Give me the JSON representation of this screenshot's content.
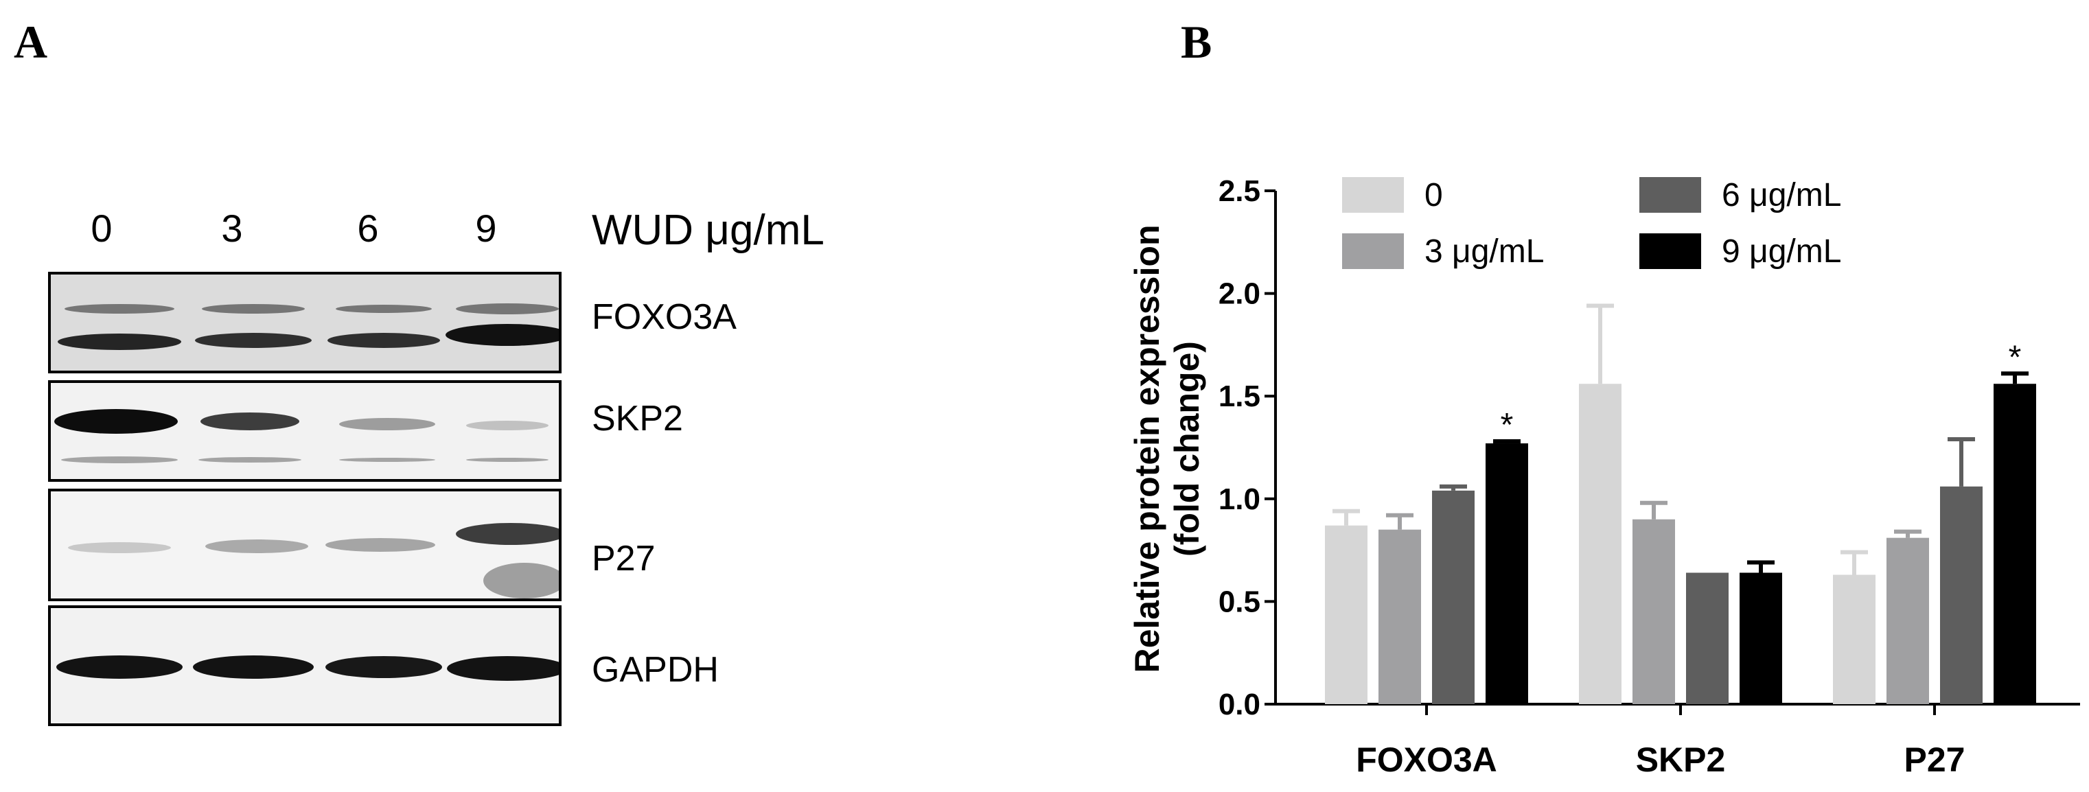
{
  "panelA": {
    "letter": "A",
    "lanes": [
      "0",
      "3",
      "6",
      "9"
    ],
    "unit_label": "WUD μg/mL",
    "proteins": [
      "FOXO3A",
      "SKP2",
      "P27",
      "GAPDH"
    ]
  },
  "panelB": {
    "letter": "B"
  },
  "colors": {
    "series0": "#d6d6d6",
    "series3": "#a0a0a2",
    "series6": "#5e5e5e",
    "series9": "#000000"
  },
  "chart_data": {
    "type": "bar",
    "categories": [
      "FOXO3A",
      "SKP2",
      "P27"
    ],
    "series": [
      {
        "name": "0",
        "values": [
          0.87,
          1.56,
          0.63
        ],
        "errors": [
          0.07,
          0.38,
          0.11
        ]
      },
      {
        "name": "3 μg/mL",
        "values": [
          0.85,
          0.9,
          0.81
        ],
        "errors": [
          0.07,
          0.08,
          0.03
        ]
      },
      {
        "name": "6 μg/mL",
        "values": [
          1.04,
          0.64,
          1.06
        ],
        "errors": [
          0.02,
          0.0,
          0.23
        ]
      },
      {
        "name": "9 μg/mL",
        "values": [
          1.27,
          0.64,
          1.56
        ],
        "errors": [
          0.01,
          0.05,
          0.05
        ]
      }
    ],
    "significance": [
      {
        "category": "FOXO3A",
        "series": "9 μg/mL",
        "mark": "*"
      },
      {
        "category": "P27",
        "series": "9 μg/mL",
        "mark": "*"
      }
    ],
    "ylabel_line1": "Relative protein expression",
    "ylabel_line2": "(fold change)",
    "ylim": [
      0,
      2.5
    ],
    "yticks": [
      "0.0",
      "0.5",
      "1.0",
      "1.5",
      "2.0",
      "2.5"
    ],
    "legend_position": "top",
    "grid": false
  }
}
